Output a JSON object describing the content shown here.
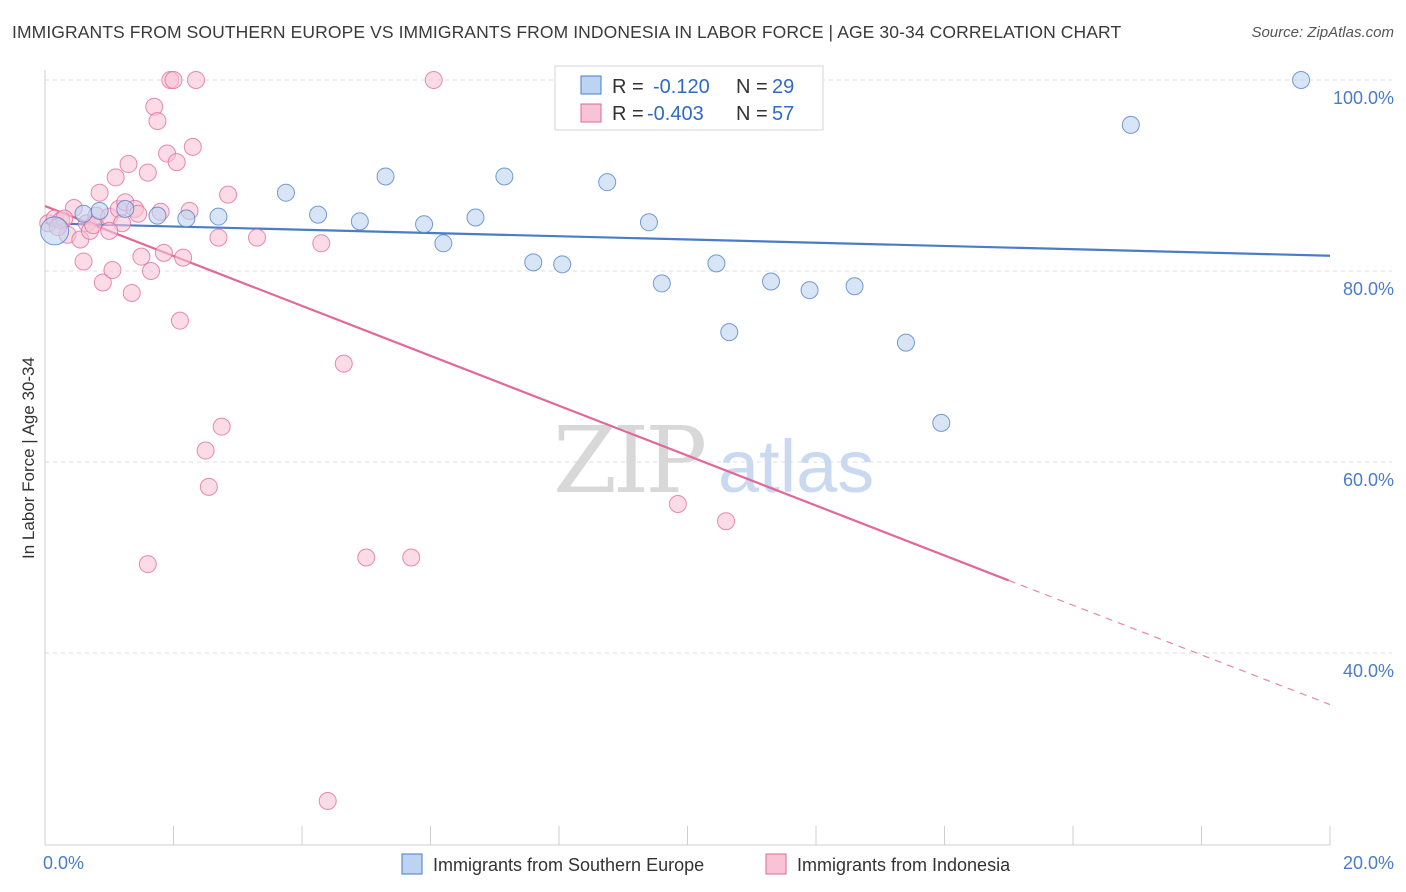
{
  "title": "IMMIGRANTS FROM SOUTHERN EUROPE VS IMMIGRANTS FROM INDONESIA IN LABOR FORCE | AGE 30-34 CORRELATION CHART",
  "source": "Source: ZipAtlas.com",
  "watermark": {
    "zip": "ZIP",
    "atlas": "atlas"
  },
  "colors": {
    "blue": "#4a7cc7",
    "blue_fill": "#bcd3f2",
    "pink": "#e2679a",
    "pink_fill": "#f7c3d5"
  },
  "legend": {
    "r_label": "R =",
    "n_label": "N =",
    "rows": [
      {
        "r": "-0.120",
        "n": "29"
      },
      {
        "r": "-0.403",
        "n": "57"
      }
    ]
  },
  "bottom_legend": [
    "Immigrants from Southern Europe",
    "Immigrants from Indonesia"
  ],
  "chart_data": {
    "type": "scatter",
    "xlabel": "",
    "ylabel": "In Labor Force | Age 30-34",
    "xlim": [
      0,
      20
    ],
    "ylim": [
      20,
      102
    ],
    "x_tick_labels": [
      "0.0%",
      "20.0%"
    ],
    "y_tick_labels": [
      "100.0%",
      "80.0%",
      "60.0%",
      "40.0%"
    ],
    "y_ticks": [
      100,
      80,
      60,
      40
    ],
    "series": [
      {
        "name": "Immigrants from Southern Europe",
        "points": [
          [
            0.15,
            84.2
          ],
          [
            0.6,
            86.0
          ],
          [
            0.85,
            86.3
          ],
          [
            1.25,
            86.5
          ],
          [
            1.75,
            85.8
          ],
          [
            2.2,
            85.5
          ],
          [
            2.7,
            85.7
          ],
          [
            3.75,
            88.2
          ],
          [
            4.25,
            85.9
          ],
          [
            4.9,
            85.2
          ],
          [
            5.3,
            89.9
          ],
          [
            5.9,
            84.9
          ],
          [
            6.2,
            82.9
          ],
          [
            6.7,
            85.6
          ],
          [
            7.15,
            89.9
          ],
          [
            7.6,
            80.9
          ],
          [
            8.05,
            80.7
          ],
          [
            8.75,
            89.3
          ],
          [
            9.4,
            85.1
          ],
          [
            9.6,
            78.7
          ],
          [
            10.45,
            80.8
          ],
          [
            10.65,
            73.6
          ],
          [
            11.3,
            78.9
          ],
          [
            11.9,
            78.0
          ],
          [
            12.6,
            78.4
          ],
          [
            13.4,
            72.5
          ],
          [
            13.95,
            64.1
          ],
          [
            16.9,
            95.3
          ],
          [
            19.55,
            100.0
          ]
        ],
        "trend": {
          "x": [
            0,
            20
          ],
          "y": [
            85.0,
            81.6
          ]
        }
      },
      {
        "name": "Immigrants from Indonesia",
        "points": [
          [
            0.05,
            85.0
          ],
          [
            0.15,
            85.5
          ],
          [
            0.25,
            85.3
          ],
          [
            0.35,
            83.8
          ],
          [
            0.45,
            86.6
          ],
          [
            0.55,
            83.3
          ],
          [
            0.6,
            81.0
          ],
          [
            0.65,
            85.0
          ],
          [
            0.7,
            84.2
          ],
          [
            0.8,
            85.8
          ],
          [
            0.85,
            88.2
          ],
          [
            0.9,
            78.8
          ],
          [
            1.0,
            85.7
          ],
          [
            1.05,
            80.1
          ],
          [
            1.1,
            89.8
          ],
          [
            1.15,
            86.5
          ],
          [
            1.2,
            85.0
          ],
          [
            1.25,
            87.2
          ],
          [
            1.3,
            91.2
          ],
          [
            1.35,
            77.7
          ],
          [
            1.4,
            86.5
          ],
          [
            1.5,
            81.5
          ],
          [
            1.6,
            90.3
          ],
          [
            1.6,
            49.3
          ],
          [
            1.65,
            80.0
          ],
          [
            1.7,
            97.2
          ],
          [
            1.75,
            95.7
          ],
          [
            1.8,
            86.2
          ],
          [
            1.85,
            81.9
          ],
          [
            1.9,
            92.3
          ],
          [
            1.95,
            100.0
          ],
          [
            2.0,
            100.0
          ],
          [
            2.05,
            91.4
          ],
          [
            2.1,
            74.8
          ],
          [
            2.15,
            81.4
          ],
          [
            2.3,
            93.0
          ],
          [
            2.35,
            100.0
          ],
          [
            2.5,
            61.2
          ],
          [
            2.55,
            57.4
          ],
          [
            2.7,
            83.5
          ],
          [
            2.75,
            63.7
          ],
          [
            2.85,
            88.0
          ],
          [
            3.3,
            83.5
          ],
          [
            4.3,
            82.9
          ],
          [
            4.4,
            24.5
          ],
          [
            4.65,
            70.3
          ],
          [
            5.0,
            50.0
          ],
          [
            5.7,
            50.0
          ],
          [
            6.05,
            100.0
          ],
          [
            9.85,
            55.6
          ],
          [
            10.6,
            53.8
          ],
          [
            0.3,
            85.5
          ],
          [
            0.75,
            84.8
          ],
          [
            1.45,
            86.0
          ],
          [
            2.25,
            86.3
          ],
          [
            0.2,
            84.6
          ],
          [
            1.0,
            84.2
          ]
        ],
        "trend": {
          "x": [
            0,
            15.0
          ],
          "y": [
            86.8,
            47.6
          ]
        },
        "trend_dashed": {
          "x": [
            15.0,
            20
          ],
          "y": [
            47.6,
            34.6
          ]
        }
      }
    ]
  }
}
